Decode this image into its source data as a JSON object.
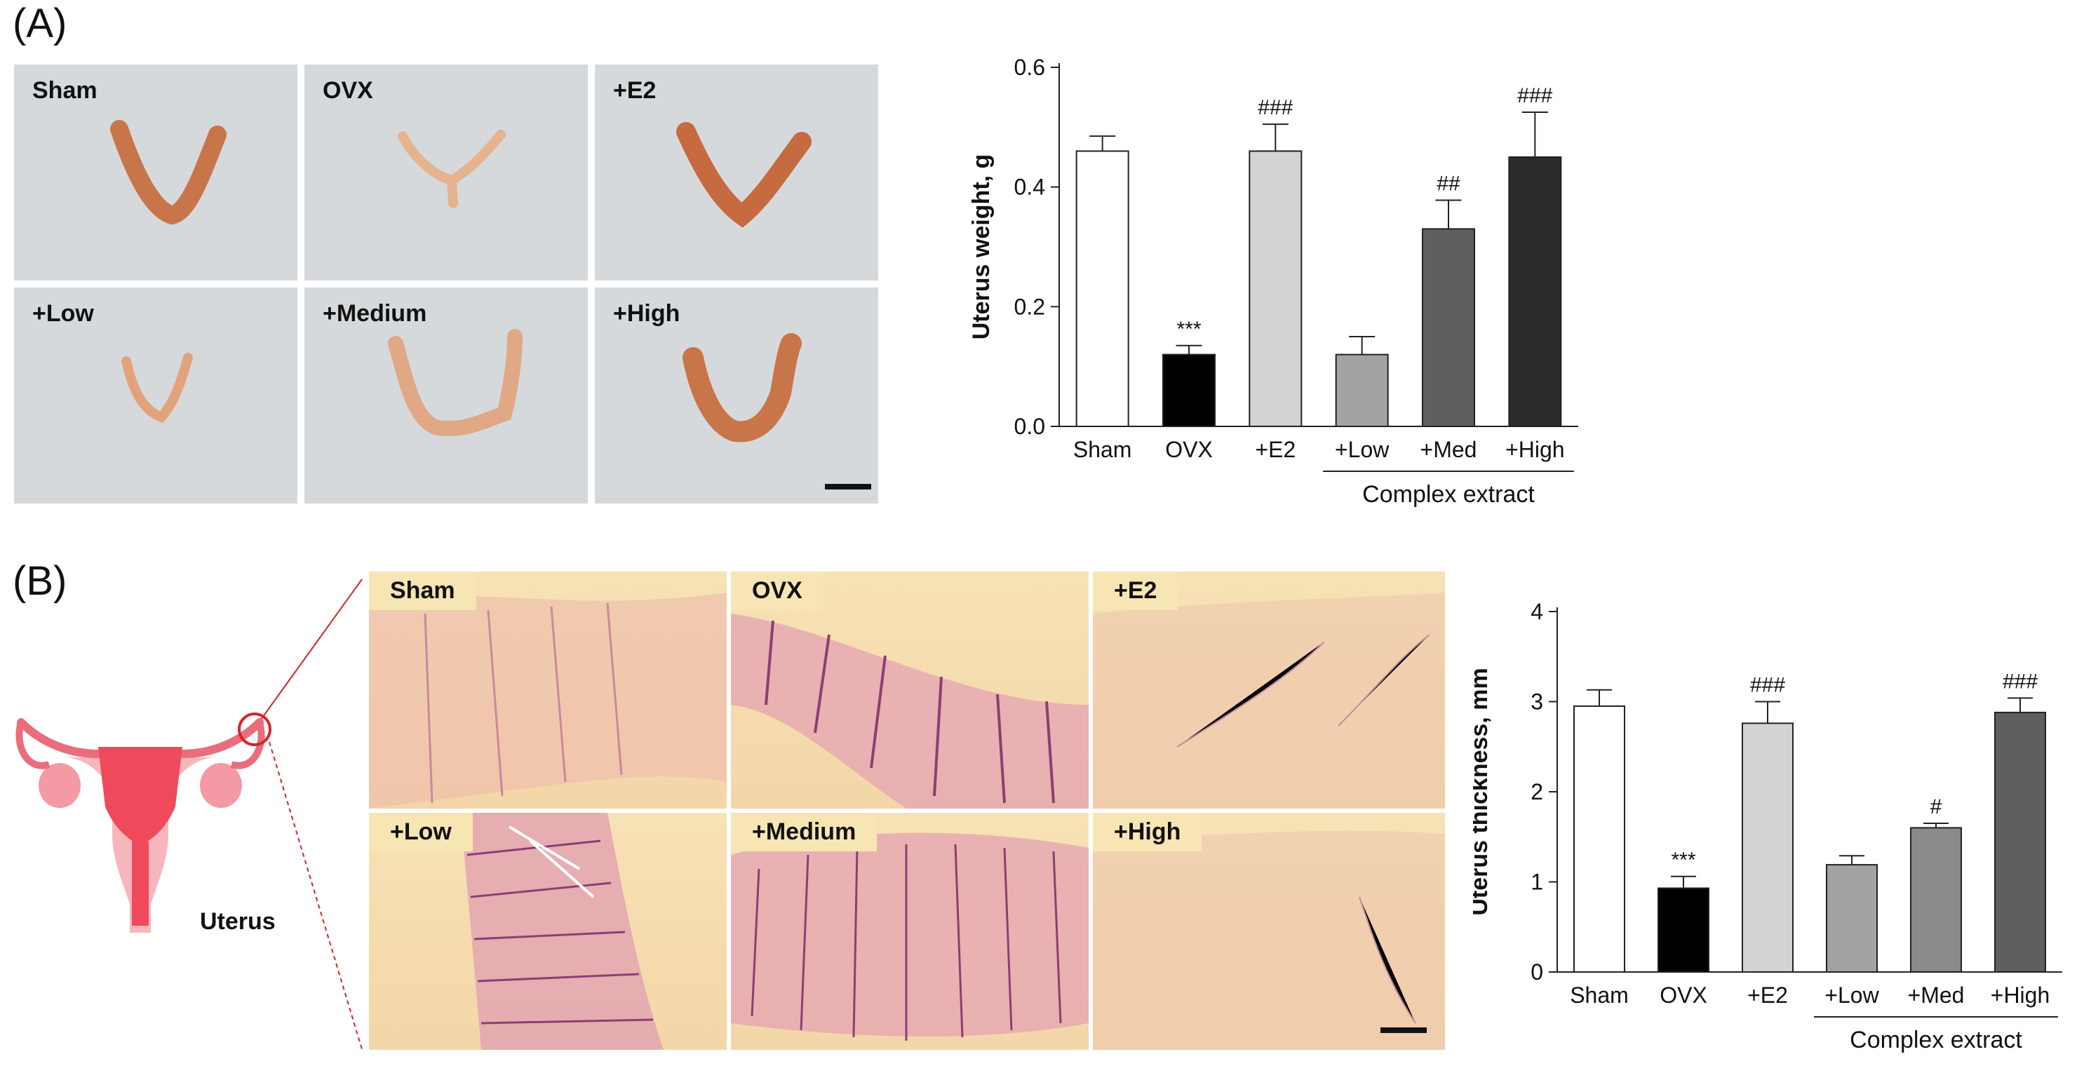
{
  "panels": {
    "a": {
      "label": "(A)"
    },
    "b": {
      "label": "(B)"
    }
  },
  "gross_photos": [
    "Sham",
    "OVX",
    "+E2",
    "+Low",
    "+Medium",
    "+High"
  ],
  "histology_photos": [
    "Sham",
    "OVX",
    "+E2",
    "+Low",
    "+Medium",
    "+High"
  ],
  "diagram": {
    "label": "Uterus"
  },
  "chart_data": [
    {
      "type": "bar",
      "ylabel": "Uterus weight, g",
      "categories": [
        "Sham",
        "OVX",
        "+E2",
        "+Low",
        "+Med",
        "+High"
      ],
      "values": [
        0.46,
        0.12,
        0.46,
        0.12,
        0.33,
        0.45
      ],
      "errors": [
        0.025,
        0.015,
        0.045,
        0.03,
        0.048,
        0.075
      ],
      "annotations": [
        "",
        "***",
        "###",
        "",
        "##",
        "###"
      ],
      "bar_colors": [
        "#ffffff",
        "#000000",
        "#d3d3d3",
        "#a3a3a6",
        "#5f5f5f",
        "#2b2b2b"
      ],
      "ylim": [
        0,
        0.6
      ],
      "yticks": [
        "0.0",
        "0.2",
        "0.4",
        "0.6"
      ],
      "group_label": "Complex extract",
      "group_range": [
        3,
        5
      ]
    },
    {
      "type": "bar",
      "ylabel": "Uterus thickness, mm",
      "categories": [
        "Sham",
        "OVX",
        "+E2",
        "+Low",
        "+Med",
        "+High"
      ],
      "values": [
        2.95,
        0.93,
        2.76,
        1.19,
        1.6,
        2.88
      ],
      "errors": [
        0.18,
        0.13,
        0.24,
        0.1,
        0.05,
        0.16
      ],
      "annotations": [
        "",
        "***",
        "###",
        "",
        "#",
        "###"
      ],
      "bar_colors": [
        "#ffffff",
        "#000000",
        "#d3d3d3",
        "#a3a3a6",
        "#8a8a8a",
        "#5f5f5f"
      ],
      "ylim": [
        0,
        4
      ],
      "yticks": [
        "0",
        "1",
        "2",
        "3",
        "4"
      ],
      "group_label": "Complex extract",
      "group_range": [
        3,
        5
      ]
    }
  ]
}
